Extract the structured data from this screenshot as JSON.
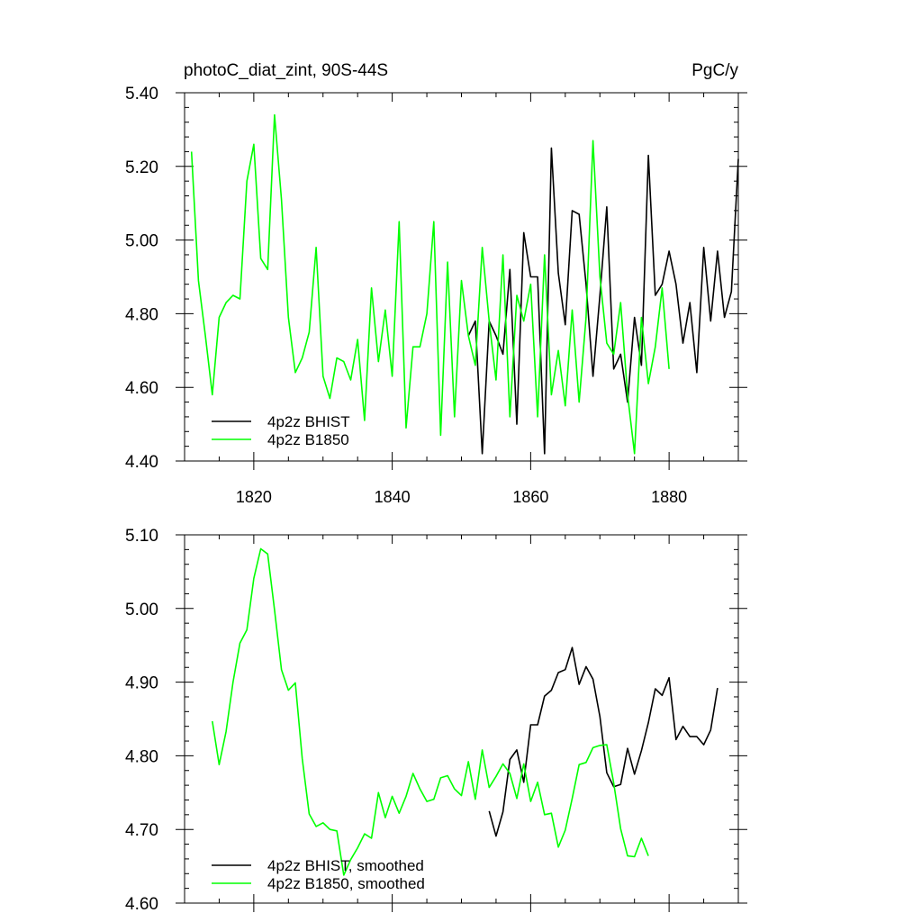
{
  "colors": {
    "bhist": "#000000",
    "b1850": "#00ff00",
    "axis": "#000000",
    "background": "#ffffff"
  },
  "chart_data": [
    {
      "type": "line",
      "title": "photoC_diat_zint, 90S-44S",
      "units": "PgC/y",
      "xlim": [
        1810,
        1890
      ],
      "ylim": [
        4.4,
        5.4
      ],
      "xticks": [
        1820,
        1840,
        1860,
        1880
      ],
      "xticklabels": [
        "1820",
        "1840",
        "1860",
        "1880"
      ],
      "yticks": [
        4.4,
        4.6,
        4.8,
        5.0,
        5.2,
        5.4
      ],
      "yticklabels": [
        "4.40",
        "4.60",
        "4.80",
        "5.00",
        "5.20",
        "5.40"
      ],
      "grid": false,
      "legend_position": "bottom-left",
      "series": [
        {
          "name": "4p2z BHIST",
          "color": "#000000",
          "x_start": 1851,
          "values": [
            4.74,
            4.78,
            4.42,
            4.78,
            4.74,
            4.69,
            4.92,
            4.5,
            5.02,
            4.9,
            4.9,
            4.42,
            5.25,
            4.91,
            4.77,
            5.08,
            5.07,
            4.88,
            4.63,
            4.85,
            5.09,
            4.65,
            4.69,
            4.56,
            4.79,
            4.66,
            5.23,
            4.85,
            4.88,
            4.97,
            4.88,
            4.72,
            4.83,
            4.64,
            4.98,
            4.78,
            4.97,
            4.79,
            4.86,
            5.22
          ]
        },
        {
          "name": "4p2z B1850",
          "color": "#00ff00",
          "x_start": 1811,
          "values": [
            5.24,
            4.89,
            4.74,
            4.58,
            4.79,
            4.83,
            4.85,
            4.84,
            5.16,
            5.26,
            4.95,
            4.92,
            5.34,
            5.11,
            4.79,
            4.64,
            4.68,
            4.75,
            4.98,
            4.63,
            4.57,
            4.68,
            4.67,
            4.62,
            4.73,
            4.51,
            4.87,
            4.67,
            4.81,
            4.63,
            5.05,
            4.49,
            4.71,
            4.71,
            4.8,
            5.05,
            4.47,
            4.94,
            4.52,
            4.89,
            4.74,
            4.66,
            4.98,
            4.78,
            4.62,
            4.96,
            4.52,
            4.85,
            4.78,
            4.88,
            4.52,
            4.96,
            4.58,
            4.7,
            4.55,
            4.81,
            4.56,
            4.79,
            5.27,
            4.9,
            4.72,
            4.69,
            4.83,
            4.58,
            4.42,
            4.79,
            4.61,
            4.71,
            4.87,
            4.65
          ]
        }
      ],
      "legend": [
        {
          "label": "4p2z BHIST",
          "color": "#000000"
        },
        {
          "label": "4p2z B1850",
          "color": "#00ff00"
        }
      ]
    },
    {
      "type": "line",
      "title": "",
      "xlim": [
        1810,
        1890
      ],
      "ylim": [
        4.6,
        5.1
      ],
      "xticks": [
        1820,
        1840,
        1860,
        1880
      ],
      "xticklabels": [],
      "yticks": [
        4.6,
        4.7,
        4.8,
        4.9,
        5.0,
        5.1
      ],
      "yticklabels": [
        "4.60",
        "4.70",
        "4.80",
        "4.90",
        "5.00",
        "5.10"
      ],
      "grid": false,
      "legend_position": "bottom-left",
      "series": [
        {
          "name": "4p2z BHIST, smoothed",
          "color": "#000000",
          "x_start": 1854,
          "values": [
            4.725,
            4.691,
            4.724,
            4.795,
            4.808,
            4.764,
            4.842,
            4.842,
            4.881,
            4.889,
            4.913,
            4.917,
            4.947,
            4.897,
            4.921,
            4.904,
            4.853,
            4.777,
            4.758,
            4.761,
            4.81,
            4.775,
            4.807,
            4.845,
            4.891,
            4.882,
            4.906,
            4.822,
            4.84,
            4.826,
            4.826,
            4.815,
            4.835,
            4.892
          ]
        },
        {
          "name": "4p2z B1850, smoothed",
          "color": "#00ff00",
          "x_start": 1814,
          "values": [
            4.847,
            4.788,
            4.833,
            4.9,
            4.953,
            4.971,
            5.041,
            5.081,
            5.074,
            4.998,
            4.917,
            4.889,
            4.899,
            4.796,
            4.721,
            4.704,
            4.709,
            4.7,
            4.698,
            4.638,
            4.659,
            4.675,
            4.694,
            4.688,
            4.75,
            4.716,
            4.745,
            4.722,
            4.745,
            4.776,
            4.755,
            4.738,
            4.741,
            4.77,
            4.773,
            4.755,
            4.746,
            4.792,
            4.741,
            4.808,
            4.757,
            4.772,
            4.789,
            4.776,
            4.742,
            4.789,
            4.738,
            4.764,
            4.72,
            4.722,
            4.676,
            4.699,
            4.742,
            4.788,
            4.791,
            4.811,
            4.814,
            4.815,
            4.763,
            4.701,
            4.664,
            4.663,
            4.688,
            4.664
          ]
        }
      ],
      "legend": [
        {
          "label": "4p2z BHIST, smoothed",
          "color": "#000000"
        },
        {
          "label": "4p2z B1850, smoothed",
          "color": "#00ff00"
        }
      ]
    }
  ]
}
